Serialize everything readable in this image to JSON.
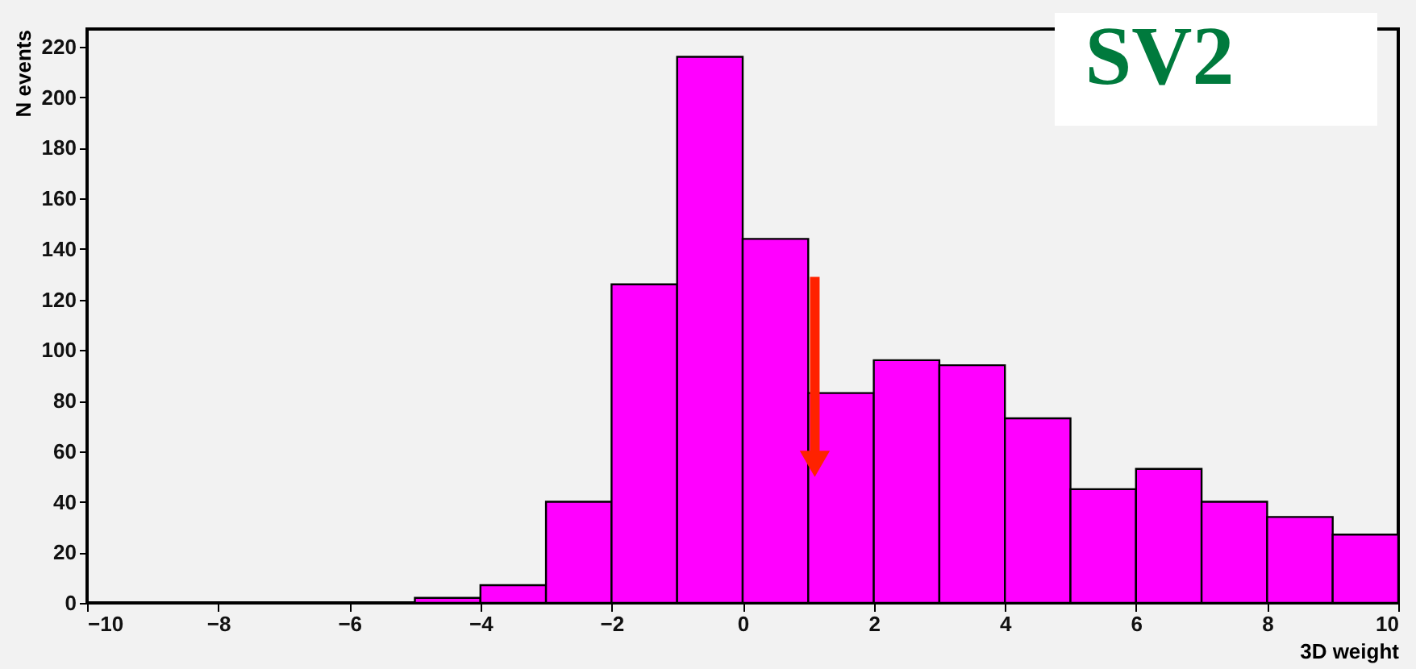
{
  "chart_data": {
    "type": "histogram",
    "xlabel": "3D weight",
    "ylabel": "N events",
    "bins": [
      -10,
      -9,
      -8,
      -7,
      -6,
      -5,
      -4,
      -3,
      -2,
      -1,
      0,
      1,
      2,
      3,
      4,
      5,
      6,
      7,
      8,
      9,
      10
    ],
    "values": [
      null,
      null,
      null,
      null,
      null,
      2,
      7,
      40,
      126,
      216,
      144,
      83,
      96,
      94,
      73,
      45,
      53,
      40,
      34,
      27
    ],
    "color": "#ff00ff",
    "xlim": [
      -10,
      10
    ],
    "xticks": [
      -10,
      -8,
      -6,
      -4,
      -2,
      0,
      2,
      4,
      6,
      8,
      10
    ],
    "ylim": [
      0,
      227
    ],
    "yticks": [
      0,
      20,
      40,
      60,
      80,
      100,
      120,
      140,
      160,
      180,
      200,
      220
    ],
    "annotations": [
      "SV2"
    ],
    "grid": false
  }
}
